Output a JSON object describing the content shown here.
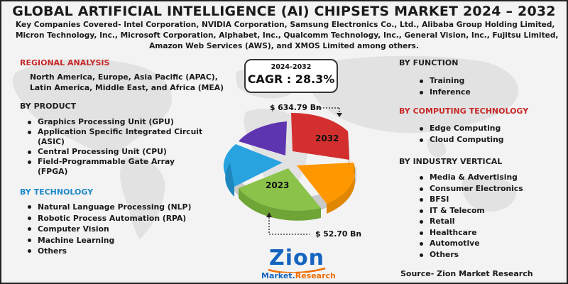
{
  "title": "GLOBAL ARTIFICIAL INTELLIGENCE (AI) CHIPSETS MARKET 2024 – 2032",
  "companies": [
    "Key Companies Covered- Intel Corporation, NVIDIA Corporation, Samsung Electronics Co., Ltd., Alibaba Group Holding Limited,",
    "Micron Technology, Inc., Microsoft Corporation, Alphabet, Inc., Qualcomm Technology, Inc., General Vision, Inc., Fujitsu Limited,",
    "Amazon Web Services (AWS), and XMOS Limited among others."
  ],
  "regional": {
    "heading": "REGIONAL ANALYSIS",
    "lines": [
      "North America, Europe, Asia Pacific (APAC),",
      "Latin America, Middle East, and Africa (MEA)"
    ]
  },
  "by_product": {
    "heading": "BY PRODUCT",
    "items": [
      "Graphics Processing Unit (GPU)",
      "Application Specific Integrated Circuit",
      "(ASIC)",
      "Central Processing Unit (CPU)",
      "Field-Programmable Gate Array",
      "(FPGA)"
    ]
  },
  "by_technology": {
    "heading": "BY TECHNOLOGY",
    "items": [
      "Natural Language Processing (NLP)",
      "Robotic Process Automation (RPA)",
      "Computer Vision",
      "Machine Learning",
      "Others"
    ]
  },
  "cagr": {
    "period": "2024-2032",
    "value": "CAGR : 28.3%"
  },
  "pie": {
    "value_2032": "$ 634.79 Bn",
    "value_2023": "$ 52.70 Bn",
    "label_2032": "2032",
    "label_2023": "2023",
    "colors": [
      "#d32f2f",
      "#ff9800",
      "#8bc34a",
      "#29a3e0",
      "#5e35b1"
    ]
  },
  "by_function": {
    "heading": "BY FUNCTION",
    "items": [
      "Training",
      "Inference"
    ]
  },
  "by_computing": {
    "heading": "BY COMPUTING TECHNOLOGY",
    "items": [
      "Edge Computing",
      "Cloud Computing"
    ]
  },
  "by_industry": {
    "heading": "BY INDUSTRY VERTICAL",
    "items": [
      "Media & Advertising",
      "Consumer Electronics",
      "BFSI",
      "IT & Telecom",
      "Retail",
      "Healthcare",
      "Automotive",
      "Others"
    ]
  },
  "logo": {
    "word": "Zion",
    "sub_a": "Market.",
    "sub_b": "Research"
  },
  "source": "Source- Zion Market Research",
  "colors": {
    "accent_red": "#c62828",
    "accent_blue": "#1e88c7",
    "logo_blue": "#1565c0",
    "logo_orange": "#ef6c00"
  }
}
